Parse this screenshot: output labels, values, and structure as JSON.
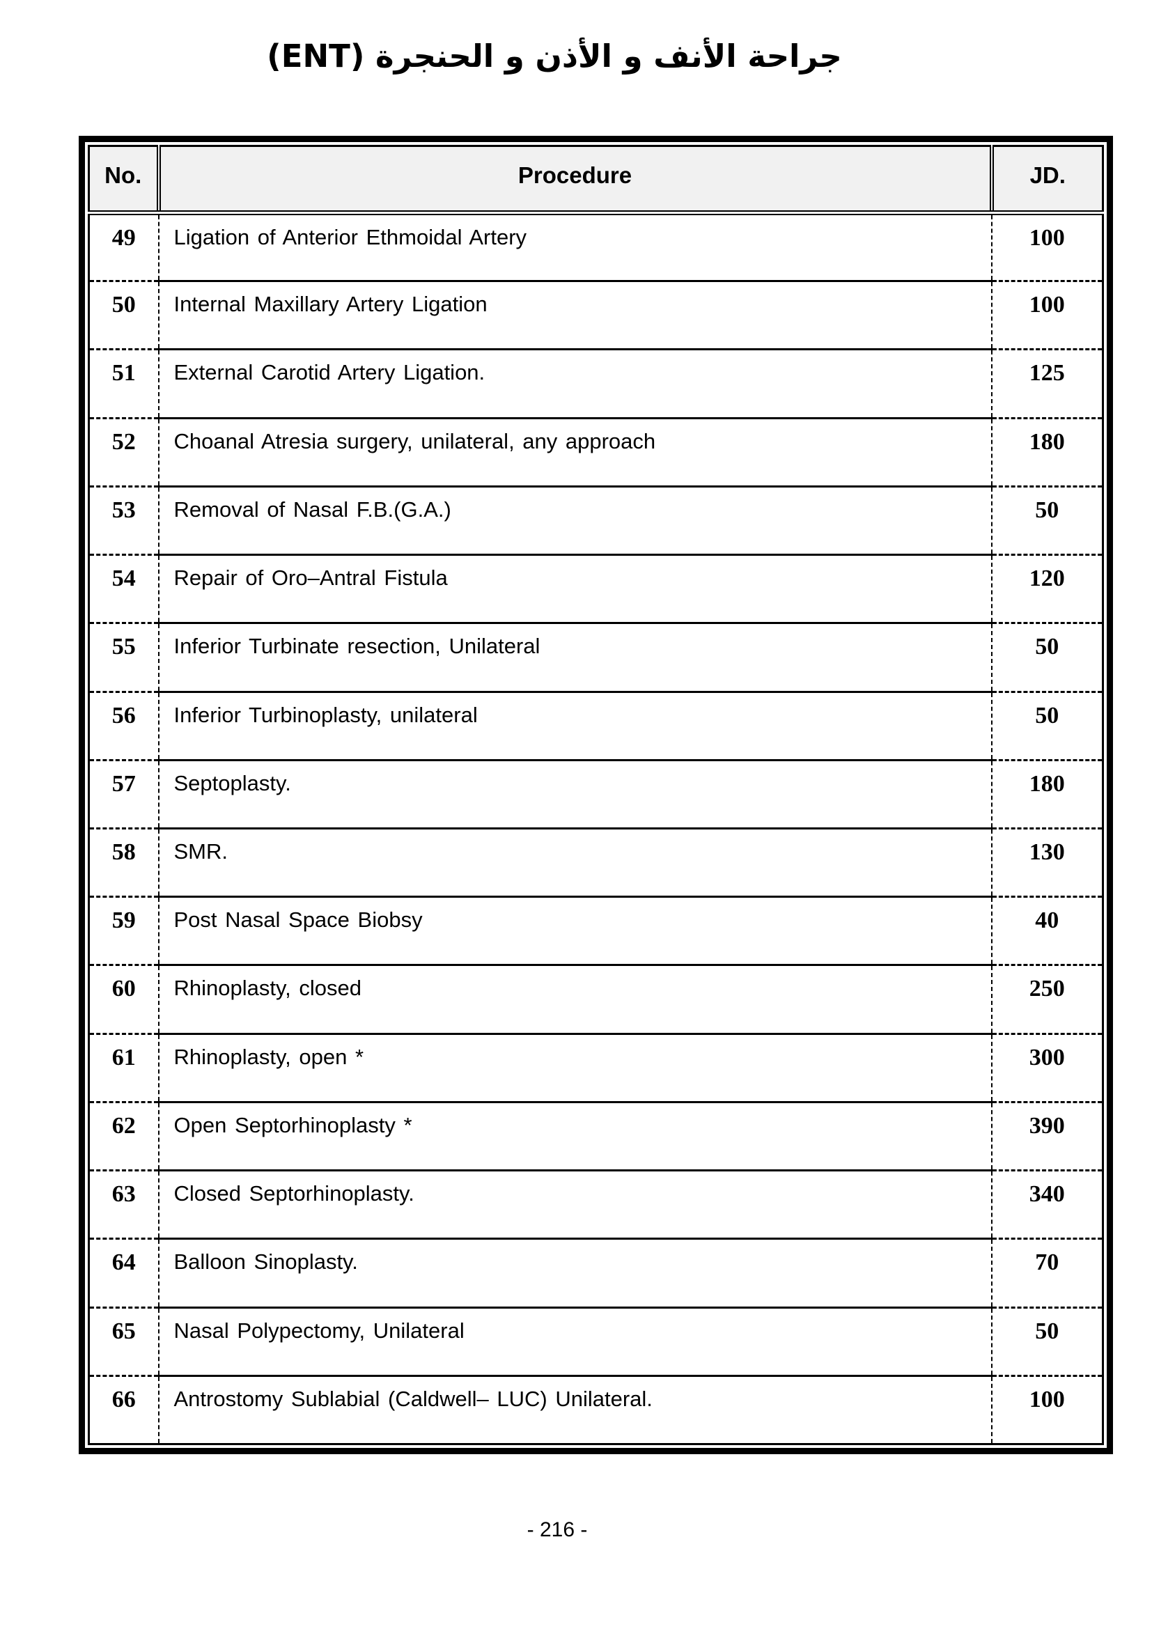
{
  "title": "جراحة الأنف و الأذن و الحنجرة (ENT)",
  "page_number": "- 216 -",
  "colors": {
    "page_bg": "#ffffff",
    "text": "#000000",
    "border": "#000000",
    "header_bg": "#f1f1f1"
  },
  "table": {
    "headers": {
      "no": "No.",
      "procedure": "Procedure",
      "jd": "JD."
    },
    "rows": [
      {
        "no": "49",
        "procedure": "Ligation of Anterior Ethmoidal Artery",
        "jd": "100"
      },
      {
        "no": "50",
        "procedure": "Internal Maxillary Artery Ligation",
        "jd": "100"
      },
      {
        "no": "51",
        "procedure": "External Carotid Artery Ligation.",
        "jd": "125"
      },
      {
        "no": "52",
        "procedure": "Choanal Atresia surgery, unilateral, any approach",
        "jd": "180"
      },
      {
        "no": "53",
        "procedure": "Removal of Nasal F.B.(G.A.)",
        "jd": "50"
      },
      {
        "no": "54",
        "procedure": "Repair of Oro–Antral Fistula",
        "jd": "120"
      },
      {
        "no": "55",
        "procedure": "Inferior Turbinate resection, Unilateral",
        "jd": "50"
      },
      {
        "no": "56",
        "procedure": "Inferior Turbinoplasty, unilateral",
        "jd": "50"
      },
      {
        "no": "57",
        "procedure": "Septoplasty.",
        "jd": "180"
      },
      {
        "no": "58",
        "procedure": "SMR.",
        "jd": "130"
      },
      {
        "no": "59",
        "procedure": "Post Nasal Space Biobsy",
        "jd": "40"
      },
      {
        "no": "60",
        "procedure": "Rhinoplasty, closed",
        "jd": "250"
      },
      {
        "no": "61",
        "procedure": "Rhinoplasty, open *",
        "jd": "300"
      },
      {
        "no": "62",
        "procedure": "Open Septorhinoplasty *",
        "jd": "390"
      },
      {
        "no": "63",
        "procedure": "Closed Septorhinoplasty.",
        "jd": "340"
      },
      {
        "no": "64",
        "procedure": "Balloon Sinoplasty.",
        "jd": "70"
      },
      {
        "no": "65",
        "procedure": "Nasal Polypectomy, Unilateral",
        "jd": "50"
      },
      {
        "no": "66",
        "procedure": "Antrostomy Sublabial (Caldwell– LUC) Unilateral.",
        "jd": "100"
      }
    ]
  }
}
